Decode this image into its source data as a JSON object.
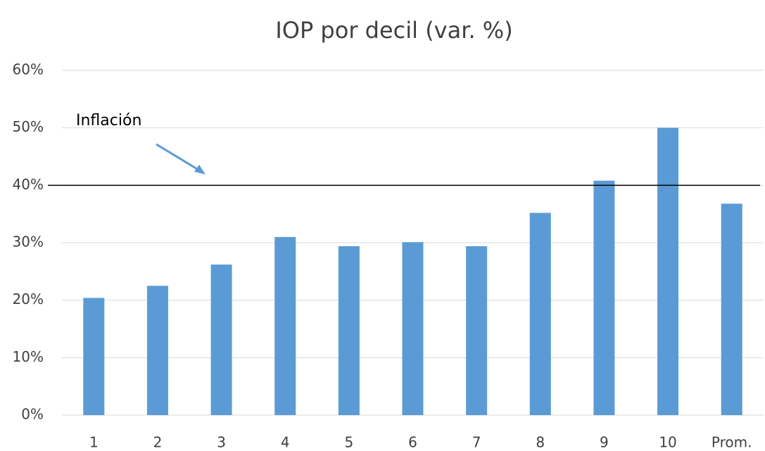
{
  "chart_data": {
    "type": "bar",
    "title": "IOP por decil (var. %)",
    "categories": [
      "1",
      "2",
      "3",
      "4",
      "5",
      "6",
      "7",
      "8",
      "9",
      "10",
      "Prom."
    ],
    "values": [
      20.4,
      22.5,
      26.2,
      31.0,
      29.4,
      30.1,
      29.4,
      35.2,
      40.8,
      50.0,
      36.8
    ],
    "color": "#5b9bd5",
    "ylim": [
      0,
      60
    ],
    "yticks": [
      {
        "value": 0,
        "label": "0%"
      },
      {
        "value": 10,
        "label": "10%"
      },
      {
        "value": 20,
        "label": "20%"
      },
      {
        "value": 30,
        "label": "30%"
      },
      {
        "value": 40,
        "label": "40%"
      },
      {
        "value": 50,
        "label": "50%"
      },
      {
        "value": 60,
        "label": "60%"
      }
    ],
    "grid": true,
    "reference_line": {
      "value": 40,
      "label": "Inflación",
      "color": "#000000"
    }
  }
}
